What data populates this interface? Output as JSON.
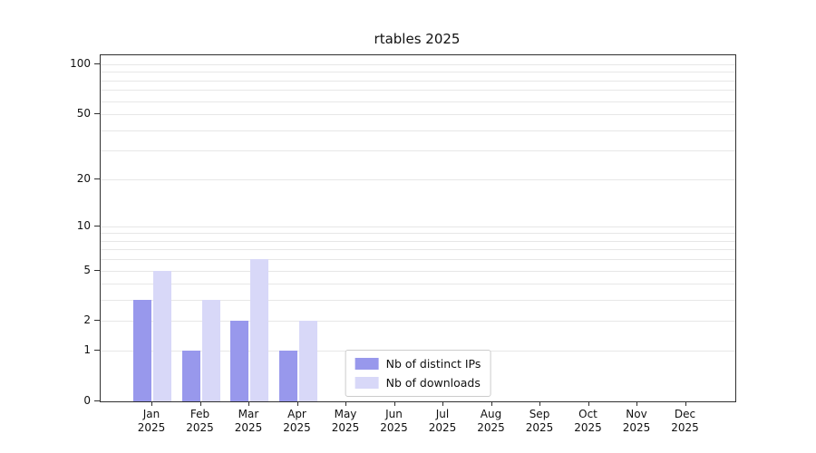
{
  "chart_data": {
    "type": "bar",
    "title": "rtables 2025",
    "categories": [
      "Jan",
      "Feb",
      "Mar",
      "Apr",
      "May",
      "Jun",
      "Jul",
      "Aug",
      "Sep",
      "Oct",
      "Nov",
      "Dec"
    ],
    "year_label": "2025",
    "series": [
      {
        "name": "Nb of distinct IPs",
        "color": "#9898ec",
        "values": [
          3,
          1,
          2,
          1,
          0,
          0,
          0,
          0,
          0,
          0,
          0,
          0
        ]
      },
      {
        "name": "Nb of downloads",
        "color": "#d8d8f8",
        "values": [
          5,
          3,
          6,
          2,
          0,
          0,
          0,
          0,
          0,
          0,
          0,
          0
        ]
      }
    ],
    "yscale": "log1p",
    "ylim": [
      0,
      100
    ],
    "y_tick_labels": [
      100,
      50,
      20,
      10,
      5,
      2,
      1,
      0
    ],
    "y_minor_gridlines": [
      1,
      2,
      3,
      4,
      5,
      6,
      7,
      8,
      9,
      10,
      20,
      30,
      40,
      50,
      60,
      70,
      80,
      90,
      100
    ],
    "grid": "horizontal-minor",
    "legend_position": "bottom-center",
    "axis_color": "#2f2f2f",
    "gridline_color": "#e7e7e7"
  }
}
